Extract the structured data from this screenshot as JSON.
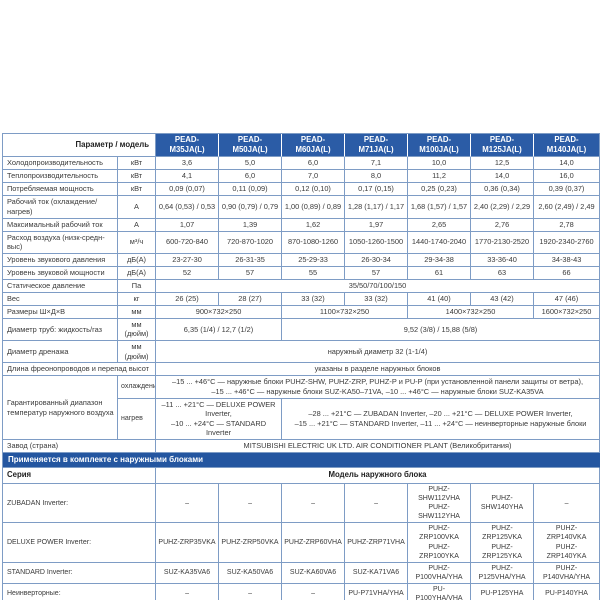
{
  "colors": {
    "header_bg": "#2b5ca6",
    "band_bg": "#2456a0",
    "border": "#7e9cc5",
    "text": "#3a3a3a",
    "header_text": "#ffffff"
  },
  "table": {
    "rows": [
      {
        "name": "header-row",
        "cells": [
          {
            "t": "Параметр / модель",
            "cs": 2,
            "cls": "corner",
            "n": "header-corner"
          },
          {
            "t": "PEAD-M35JA(L)",
            "cls": "mh",
            "n": "model-header"
          },
          {
            "t": "PEAD-M50JA(L)",
            "cls": "mh",
            "n": "model-header"
          },
          {
            "t": "PEAD-M60JA(L)",
            "cls": "mh",
            "n": "model-header"
          },
          {
            "t": "PEAD-M71JA(L)",
            "cls": "mh",
            "n": "model-header"
          },
          {
            "t": "PEAD-M100JA(L)",
            "cls": "mh",
            "n": "model-header"
          },
          {
            "t": "PEAD-M125JA(L)",
            "cls": "mh",
            "n": "model-header"
          },
          {
            "t": "PEAD-M140JA(L)",
            "cls": "mh",
            "n": "model-header"
          }
        ]
      },
      {
        "name": "spec-row-cooling-capacity",
        "cells": [
          {
            "t": "Холодопроизводительность",
            "cls": "lbl",
            "n": "row-label"
          },
          {
            "t": "кВт",
            "n": "row-unit"
          },
          {
            "t": "3,6"
          },
          {
            "t": "5,0"
          },
          {
            "t": "6,0"
          },
          {
            "t": "7,1"
          },
          {
            "t": "10,0"
          },
          {
            "t": "12,5"
          },
          {
            "t": "14,0"
          }
        ]
      },
      {
        "name": "spec-row-heating-capacity",
        "cells": [
          {
            "t": "Теплопроизводительность",
            "cls": "lbl",
            "n": "row-label"
          },
          {
            "t": "кВт",
            "n": "row-unit"
          },
          {
            "t": "4,1"
          },
          {
            "t": "6,0"
          },
          {
            "t": "7,0"
          },
          {
            "t": "8,0"
          },
          {
            "t": "11,2"
          },
          {
            "t": "14,0"
          },
          {
            "t": "16,0"
          }
        ]
      },
      {
        "name": "spec-row-power-consumption",
        "cells": [
          {
            "t": "Потребляемая мощность",
            "cls": "lbl",
            "n": "row-label"
          },
          {
            "t": "кВт",
            "n": "row-unit"
          },
          {
            "t": "0,09 (0,07)"
          },
          {
            "t": "0,11 (0,09)"
          },
          {
            "t": "0,12 (0,10)"
          },
          {
            "t": "0,17 (0,15)"
          },
          {
            "t": "0,25 (0,23)"
          },
          {
            "t": "0,36 (0,34)"
          },
          {
            "t": "0,39 (0,37)"
          }
        ]
      },
      {
        "name": "spec-row-operating-current",
        "cells": [
          {
            "t": "Рабочий ток (охлаждение/нагрев)",
            "cls": "lbl",
            "n": "row-label"
          },
          {
            "t": "А",
            "n": "row-unit"
          },
          {
            "t": "0,64 (0,53) / 0,53"
          },
          {
            "t": "0,90 (0,79) / 0,79"
          },
          {
            "t": "1,00 (0,89) / 0,89"
          },
          {
            "t": "1,28 (1,17) / 1,17"
          },
          {
            "t": "1,68 (1,57) / 1,57"
          },
          {
            "t": "2,40 (2,29) / 2,29"
          },
          {
            "t": "2,60 (2,49) / 2,49"
          }
        ]
      },
      {
        "name": "spec-row-max-current",
        "cells": [
          {
            "t": "Максимальный рабочий ток",
            "cls": "lbl",
            "n": "row-label"
          },
          {
            "t": "А",
            "n": "row-unit"
          },
          {
            "t": "1,07"
          },
          {
            "t": "1,39"
          },
          {
            "t": "1,62"
          },
          {
            "t": "1,97"
          },
          {
            "t": "2,65"
          },
          {
            "t": "2,76"
          },
          {
            "t": "2,78"
          }
        ]
      },
      {
        "name": "spec-row-airflow",
        "cells": [
          {
            "t": "Расход воздуха (низк-средн-выс)",
            "cls": "lbl",
            "n": "row-label"
          },
          {
            "t": "м³/ч",
            "n": "row-unit"
          },
          {
            "t": "600-720-840"
          },
          {
            "t": "720-870-1020"
          },
          {
            "t": "870-1080-1260"
          },
          {
            "t": "1050-1260-1500"
          },
          {
            "t": "1440-1740-2040"
          },
          {
            "t": "1770-2130-2520"
          },
          {
            "t": "1920-2340-2760"
          }
        ]
      },
      {
        "name": "spec-row-sound-pressure",
        "cells": [
          {
            "t": "Уровень звукового давления",
            "cls": "lbl",
            "n": "row-label"
          },
          {
            "t": "дБ(А)",
            "n": "row-unit"
          },
          {
            "t": "23-27-30"
          },
          {
            "t": "26-31-35"
          },
          {
            "t": "25-29-33"
          },
          {
            "t": "26-30-34"
          },
          {
            "t": "29-34-38"
          },
          {
            "t": "33-36-40"
          },
          {
            "t": "34-38-43"
          }
        ]
      },
      {
        "name": "spec-row-sound-power",
        "cells": [
          {
            "t": "Уровень звуковой мощности",
            "cls": "lbl",
            "n": "row-label"
          },
          {
            "t": "дБ(А)",
            "n": "row-unit"
          },
          {
            "t": "52"
          },
          {
            "t": "57"
          },
          {
            "t": "55"
          },
          {
            "t": "57"
          },
          {
            "t": "61"
          },
          {
            "t": "63"
          },
          {
            "t": "66"
          }
        ]
      },
      {
        "name": "spec-row-static-pressure",
        "cells": [
          {
            "t": "Статическое давление",
            "cls": "lbl",
            "n": "row-label"
          },
          {
            "t": "Па",
            "n": "row-unit"
          },
          {
            "t": "35/50/70/100/150",
            "cs": 7
          }
        ]
      },
      {
        "name": "spec-row-weight",
        "cells": [
          {
            "t": "Вес",
            "cls": "lbl",
            "n": "row-label"
          },
          {
            "t": "кг",
            "n": "row-unit"
          },
          {
            "t": "26 (25)"
          },
          {
            "t": "28 (27)"
          },
          {
            "t": "33 (32)"
          },
          {
            "t": "33 (32)"
          },
          {
            "t": "41 (40)"
          },
          {
            "t": "43 (42)"
          },
          {
            "t": "47 (46)"
          }
        ]
      },
      {
        "name": "spec-row-dimensions",
        "cells": [
          {
            "t": "Размеры Ш×Д×В",
            "cls": "lbl",
            "n": "row-label"
          },
          {
            "t": "мм",
            "n": "row-unit"
          },
          {
            "t": "900×732×250",
            "cs": 2
          },
          {
            "t": "1100×732×250",
            "cs": 2
          },
          {
            "t": "1400×732×250",
            "cs": 2
          },
          {
            "t": "1600×732×250"
          }
        ]
      },
      {
        "name": "spec-row-pipe-diameters",
        "cells": [
          {
            "t": "Диаметр труб: жидкость/газ",
            "cls": "lbl",
            "n": "row-label"
          },
          {
            "t": "мм (дюйм)",
            "n": "row-unit"
          },
          {
            "t": "6,35 (1/4) / 12,7 (1/2)",
            "cs": 2
          },
          {
            "t": "9,52 (3/8) / 15,88 (5/8)",
            "cs": 5
          }
        ]
      },
      {
        "name": "spec-row-drain-diameter",
        "cells": [
          {
            "t": "Диаметр дренажа",
            "cls": "lbl",
            "n": "row-label"
          },
          {
            "t": "мм (дюйм)",
            "n": "row-unit"
          },
          {
            "t": "наружный диаметр 32 (1-1/4)",
            "cs": 7
          }
        ]
      },
      {
        "name": "spec-row-line-length",
        "cells": [
          {
            "t": "Длина фреонопроводов и перепад высот",
            "cs": 2,
            "cls": "lbl",
            "n": "row-label"
          },
          {
            "t": "указаны в разделе наружных блоков",
            "cs": 7
          }
        ]
      },
      {
        "name": "spec-row-temp-range-cooling",
        "cells": [
          {
            "t": "Гарантированный диапазон температур наружного воздуха",
            "rs": 2,
            "cls": "lbl",
            "n": "row-label"
          },
          {
            "t": "охлаждение",
            "cls": "sub",
            "n": "row-sublabel"
          },
          {
            "t": "–15 ... +46°C — наружные блоки PUHZ-SHW, PUHZ-ZRP, PUHZ-P и PU-P (при установленной панели защиты от ветра),\n–15 ... +46°C — наружные блоки SUZ-KA50–71VA, –10 ... +46°C — наружные блоки SUZ-KA35VA",
            "cs": 7
          }
        ]
      },
      {
        "name": "spec-row-temp-range-heating",
        "cells": [
          {
            "t": "нагрев",
            "cls": "sub",
            "n": "row-sublabel"
          },
          {
            "t": "–11 ... +21°C — DELUXE POWER Inverter,\n–10 ... +24°C — STANDARD Inverter",
            "cs": 2
          },
          {
            "t": "–28 ... +21°C — ZUBADAN Inverter, –20 ... +21°C — DELUXE POWER Inverter,\n–15 ... +21°C — STANDARD Inverter, –11 ... +24°C — неинверторные наружные блоки",
            "cs": 5
          }
        ]
      },
      {
        "name": "spec-row-factory",
        "cells": [
          {
            "t": "Завод (страна)",
            "cs": 2,
            "cls": "lbl",
            "n": "row-label"
          },
          {
            "t": "MITSUBISHI ELECTRIC UK LTD. AIR CONDITIONER PLANT (Великобритания)",
            "cs": 7
          }
        ]
      },
      {
        "name": "section-band",
        "cells": [
          {
            "t": "Применяется в комплекте с наружными блоками",
            "cs": 9,
            "cls": "band",
            "n": "section-band-title"
          }
        ]
      },
      {
        "name": "outdoor-header-row",
        "cells": [
          {
            "t": "Серия",
            "cs": 2,
            "cls": "lbl serh",
            "n": "series-column-header"
          },
          {
            "t": "Модель наружного блока",
            "cs": 7,
            "cls": "bold",
            "n": "outdoor-model-header"
          }
        ]
      },
      {
        "name": "outdoor-row-zubadan",
        "cls": "od",
        "cells": [
          {
            "t": "ZUBADAN Inverter:",
            "cs": 2,
            "cls": "lbl",
            "n": "series-label"
          },
          {
            "t": "–"
          },
          {
            "t": "–"
          },
          {
            "t": "–"
          },
          {
            "t": "–"
          },
          {
            "t": "PUHZ-SHW112VHA\nPUHZ-SHW112YHA"
          },
          {
            "t": "PUHZ-SHW140YHA"
          },
          {
            "t": "–"
          }
        ]
      },
      {
        "name": "outdoor-row-deluxe-power",
        "cls": "od",
        "cells": [
          {
            "t": "DELUXE POWER Inverter:",
            "cs": 2,
            "cls": "lbl",
            "n": "series-label"
          },
          {
            "t": "PUHZ-ZRP35VKA"
          },
          {
            "t": "PUHZ-ZRP50VKA"
          },
          {
            "t": "PUHZ-ZRP60VHA"
          },
          {
            "t": "PUHZ-ZRP71VHA"
          },
          {
            "t": "PUHZ-ZRP100VKA\nPUHZ-ZRP100YKA"
          },
          {
            "t": "PUHZ-ZRP125VKA\nPUHZ-ZRP125YKA"
          },
          {
            "t": "PUHZ-ZRP140VKA\nPUHZ-ZRP140YKA"
          }
        ]
      },
      {
        "name": "outdoor-row-standard",
        "cls": "od",
        "cells": [
          {
            "t": "STANDARD Inverter:",
            "cs": 2,
            "cls": "lbl",
            "n": "series-label"
          },
          {
            "t": "SUZ-KA35VA6"
          },
          {
            "t": "SUZ-KA50VA6"
          },
          {
            "t": "SUZ-KA60VA6"
          },
          {
            "t": "SUZ-KA71VA6"
          },
          {
            "t": "PUHZ-P100VHA/YHA"
          },
          {
            "t": "PUHZ-P125VHA/YHA"
          },
          {
            "t": "PUHZ-P140VHA/YHA"
          }
        ]
      },
      {
        "name": "outdoor-row-noninverter",
        "cls": "od",
        "cells": [
          {
            "t": "Неинверторные:",
            "cs": 2,
            "cls": "lbl",
            "n": "series-label"
          },
          {
            "t": "–"
          },
          {
            "t": "–"
          },
          {
            "t": "–"
          },
          {
            "t": "PU-P71VHA/YHA"
          },
          {
            "t": "PU-P100YHA/VHA"
          },
          {
            "t": "PU-P125YHA"
          },
          {
            "t": "PU-P140YHA"
          }
        ]
      }
    ]
  }
}
